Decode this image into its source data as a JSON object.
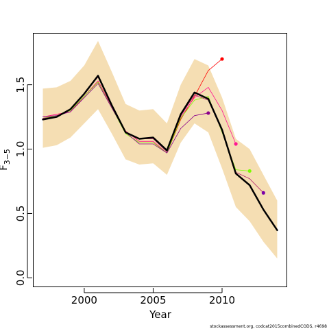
{
  "chart_data": {
    "type": "line",
    "xlabel": "Year",
    "ylabel": "F",
    "ylabel_subscript": "3−5",
    "xlim": [
      1996.3,
      2014.7
    ],
    "ylim": [
      -0.07,
      1.9
    ],
    "xticks": [
      2000,
      2005,
      2010
    ],
    "xtick_labels": [
      "2000",
      "2005",
      "2010"
    ],
    "yticks": [
      0.0,
      0.5,
      1.0,
      1.5
    ],
    "ytick_labels": [
      "0.0",
      "0.5",
      "1.0",
      "1.5"
    ],
    "grid": false,
    "footer": "stockassessment.org, codcat2015combinedCODS, r4698",
    "confidence_band": {
      "color": "#f5deb3",
      "x": [
        1997,
        1998,
        1999,
        2000,
        2001,
        2002,
        2003,
        2004,
        2005,
        2006,
        2007,
        2008,
        2009,
        2010,
        2011,
        2012,
        2013,
        2014
      ],
      "upper": [
        1.47,
        1.48,
        1.53,
        1.65,
        1.84,
        1.6,
        1.35,
        1.3,
        1.31,
        1.2,
        1.5,
        1.7,
        1.65,
        1.4,
        1.08,
        1.0,
        0.8,
        0.6
      ],
      "lower": [
        1.01,
        1.03,
        1.09,
        1.2,
        1.31,
        1.12,
        0.92,
        0.88,
        0.89,
        0.8,
        1.05,
        1.2,
        1.13,
        0.85,
        0.55,
        0.44,
        0.28,
        0.15
      ]
    },
    "series": [
      {
        "color": "#000000",
        "width": 2.5,
        "x": [
          1997,
          1998,
          1999,
          2000,
          2001,
          2002,
          2003,
          2004,
          2005,
          2006,
          2007,
          2008,
          2009,
          2010,
          2011,
          2012,
          2013,
          2014
        ],
        "y": [
          1.23,
          1.25,
          1.31,
          1.43,
          1.57,
          1.34,
          1.13,
          1.08,
          1.09,
          0.99,
          1.27,
          1.44,
          1.39,
          1.15,
          0.81,
          0.72,
          0.53,
          0.37
        ],
        "endpoint": false
      },
      {
        "color": "#ff0000",
        "width": 0.8,
        "x": [
          1997,
          1998,
          1999,
          2000,
          2001,
          2002,
          2003,
          2004,
          2005,
          2006,
          2007,
          2008,
          2009,
          2010
        ],
        "y": [
          1.25,
          1.27,
          1.29,
          1.41,
          1.53,
          1.33,
          1.14,
          1.06,
          1.06,
          0.97,
          1.23,
          1.41,
          1.61,
          1.7
        ],
        "endpoint": true
      },
      {
        "color": "#ff1493",
        "width": 0.8,
        "x": [
          1997,
          1998,
          1999,
          2000,
          2001,
          2002,
          2003,
          2004,
          2005,
          2006,
          2007,
          2008,
          2009,
          2010,
          2011
        ],
        "y": [
          1.25,
          1.27,
          1.29,
          1.41,
          1.53,
          1.33,
          1.14,
          1.06,
          1.06,
          0.97,
          1.25,
          1.4,
          1.48,
          1.3,
          1.04
        ],
        "endpoint": true
      },
      {
        "color": "#7cfc00",
        "width": 0.8,
        "x": [
          1997,
          1998,
          1999,
          2000,
          2001,
          2002,
          2003,
          2004,
          2005,
          2006,
          2007,
          2008,
          2009,
          2010,
          2011,
          2012
        ],
        "y": [
          1.24,
          1.26,
          1.3,
          1.41,
          1.52,
          1.32,
          1.12,
          1.05,
          1.05,
          0.97,
          1.24,
          1.38,
          1.41,
          1.13,
          0.84,
          0.83
        ],
        "endpoint": true
      },
      {
        "color": "#8b008b",
        "width": 0.8,
        "x": [
          1997,
          1998,
          1999,
          2000,
          2001,
          2002,
          2003,
          2004,
          2005,
          2006,
          2007,
          2008,
          2009
        ],
        "y": [
          1.25,
          1.26,
          1.29,
          1.4,
          1.51,
          1.32,
          1.13,
          1.04,
          1.04,
          0.97,
          1.16,
          1.26,
          1.28
        ],
        "endpoint": true
      },
      {
        "color": "#b0186a",
        "width": 0.8,
        "x": [
          1997,
          1998,
          1999,
          2000,
          2001,
          2002,
          2003,
          2004,
          2005,
          2006,
          2007,
          2008,
          2009,
          2010,
          2011,
          2012,
          2013
        ],
        "y": [
          1.24,
          1.25,
          1.31,
          1.43,
          1.56,
          1.34,
          1.13,
          1.08,
          1.08,
          0.98,
          1.26,
          1.42,
          1.38,
          1.14,
          0.82,
          0.77,
          0.66
        ],
        "endpoint": false
      },
      {
        "color": "#7b00a8",
        "width": 0.8,
        "x": [
          2013
        ],
        "y": [
          0.66
        ],
        "endpoint": true
      }
    ]
  }
}
